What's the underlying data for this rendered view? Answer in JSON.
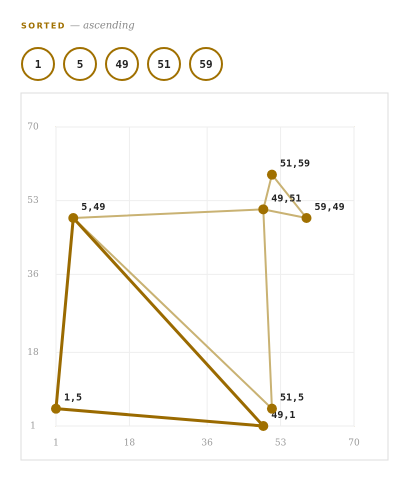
{
  "header": {
    "label": "SORTED",
    "note": "— ascending"
  },
  "chips": [
    1,
    5,
    49,
    51,
    59
  ],
  "chart_data": {
    "type": "scatter",
    "x": [
      1,
      5,
      49,
      49,
      51,
      51,
      59
    ],
    "values": [
      5,
      49,
      1,
      51,
      5,
      59,
      49
    ],
    "value_labels": [
      "1,5",
      "5,49",
      "49,1",
      "49,51",
      "51,5",
      "51,59",
      "59,49"
    ],
    "strong_edges": [
      [
        0,
        1
      ],
      [
        1,
        2
      ],
      [
        2,
        0
      ]
    ],
    "weak_edges": [
      [
        1,
        3
      ],
      [
        3,
        5
      ],
      [
        5,
        6
      ],
      [
        6,
        3
      ],
      [
        3,
        4
      ],
      [
        4,
        1
      ]
    ],
    "color": "#a07000",
    "strong_color": "#9a6a00",
    "weak_color": "#c9b273",
    "xlim": [
      1,
      70
    ],
    "ylim": [
      1,
      70
    ],
    "xticks": [
      1,
      18,
      36,
      53,
      70
    ],
    "yticks": [
      1,
      18,
      36,
      53,
      70
    ],
    "grid": true
  }
}
